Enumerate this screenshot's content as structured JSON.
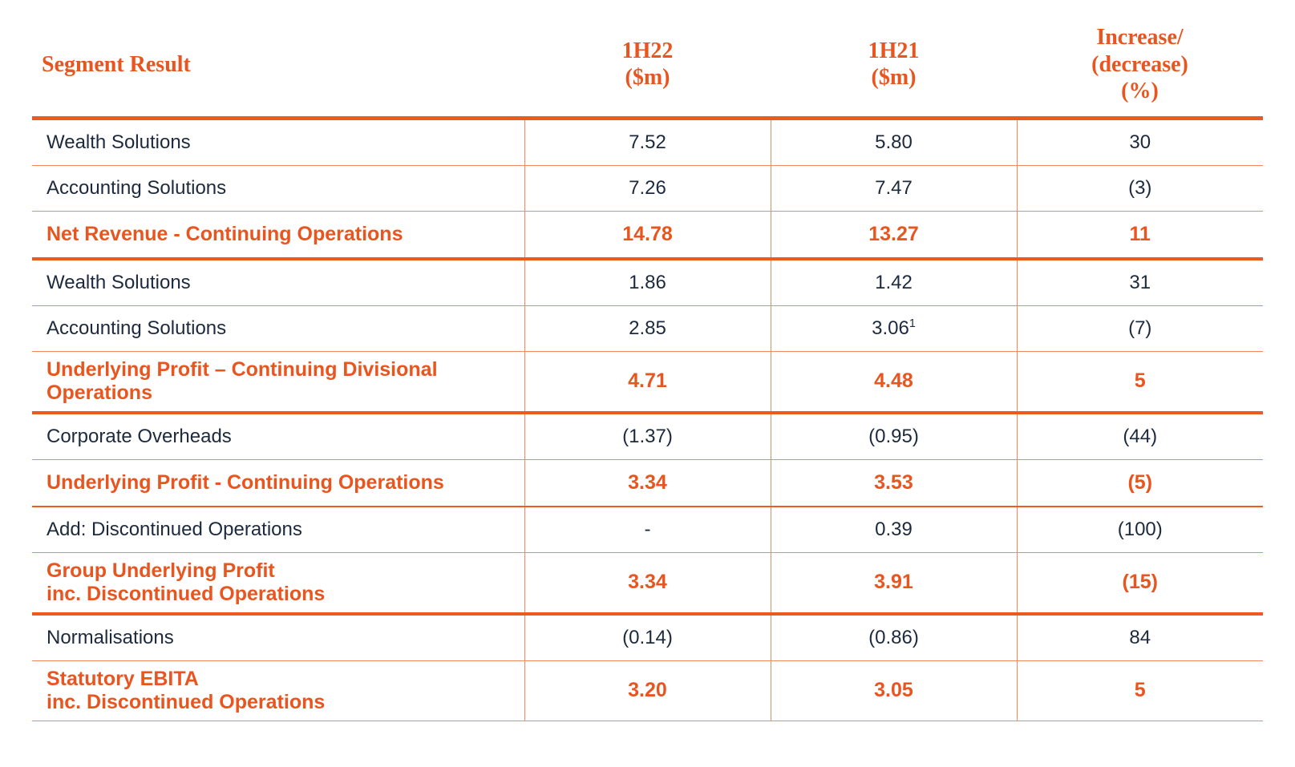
{
  "table": {
    "type": "table",
    "colors": {
      "accent": "#e8551f",
      "text": "#1d2a3d",
      "rule_thick": "#ec5a1e",
      "rule_thin": "#f08b5f",
      "background": "#ffffff"
    },
    "typography": {
      "header_font": "Georgia, serif",
      "header_fontsize_pt": 21,
      "body_font": "Arial, sans-serif",
      "body_fontsize_pt": 18,
      "emph_font": "Georgia, serif",
      "emph_fontsize_pt": 19
    },
    "col_widths_pct": [
      40,
      20,
      20,
      20
    ],
    "columns": {
      "c0": "Segment Result",
      "c1": "1H22\n($m)",
      "c2": "1H21\n($m)",
      "c3": "Increase/\n(decrease)\n(%)"
    },
    "rows": [
      {
        "style": "plain",
        "border": "thin",
        "cells": [
          "Wealth Solutions",
          "7.52",
          "5.80",
          "30"
        ]
      },
      {
        "style": "plain",
        "border": "thin",
        "cells": [
          "Accounting Solutions",
          "7.26",
          "7.47",
          "(3)"
        ]
      },
      {
        "style": "emph",
        "border": "thick",
        "cells": [
          "Net Revenue - Continuing Operations",
          "14.78",
          "13.27",
          "11"
        ]
      },
      {
        "style": "plain",
        "border": "thin",
        "cells": [
          "Wealth Solutions",
          "1.86",
          "1.42",
          "31"
        ]
      },
      {
        "style": "plain",
        "border": "thin",
        "cells": [
          "Accounting Solutions",
          "2.85",
          "3.06",
          "(7)"
        ],
        "footnote_col": 2,
        "footnote_mark": "1"
      },
      {
        "style": "emph",
        "border": "thick",
        "tight": true,
        "cells": [
          "Underlying Profit – Continuing Divisional Operations",
          "4.71",
          "4.48",
          "5"
        ]
      },
      {
        "style": "plain",
        "border": "thin",
        "cells": [
          "Corporate Overheads",
          "(1.37)",
          "(0.95)",
          "(44)"
        ]
      },
      {
        "style": "emph",
        "border": "mid",
        "cells": [
          "Underlying Profit - Continuing Operations",
          "3.34",
          "3.53",
          "(5)"
        ]
      },
      {
        "style": "plain",
        "border": "thin",
        "cells": [
          "Add: Discontinued Operations",
          "-",
          "0.39",
          "(100)"
        ]
      },
      {
        "style": "emph",
        "border": "thick",
        "tight": true,
        "cells": [
          "Group Underlying Profit\ninc. Discontinued Operations",
          "3.34",
          "3.91",
          "(15)"
        ]
      },
      {
        "style": "plain",
        "border": "thin",
        "cells": [
          "Normalisations",
          "(0.14)",
          "(0.86)",
          "84"
        ]
      },
      {
        "style": "emph",
        "border": "thin",
        "tight": true,
        "cells": [
          "Statutory EBITA\ninc. Discontinued Operations",
          "3.20",
          "3.05",
          "5"
        ]
      }
    ]
  }
}
